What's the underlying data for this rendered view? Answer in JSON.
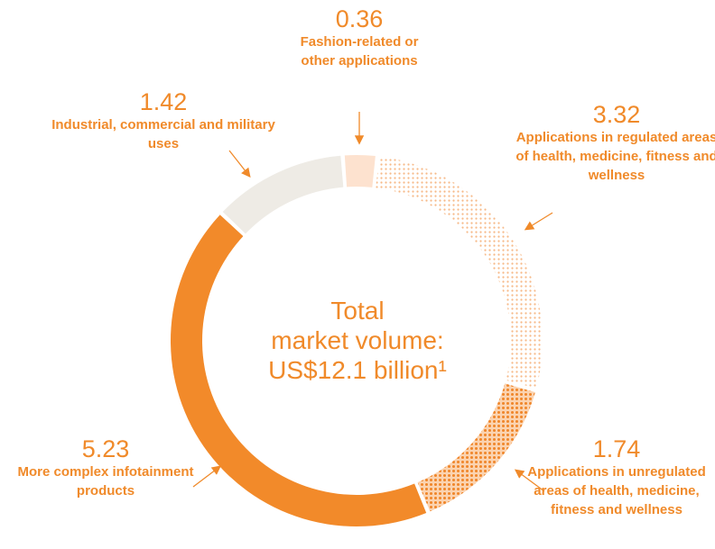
{
  "chart_data": {
    "type": "donut",
    "categories": [
      "Fashion-related or other applications",
      "Applications in regulated areas of health, medicine, fitness and wellness",
      "Applications in unregulated areas of health, medicine, fitness and wellness",
      "More complex infotainment products",
      "Industrial, commercial and military uses"
    ],
    "values": [
      0.36,
      3.32,
      1.74,
      5.23,
      1.42
    ],
    "colors": [
      "#fde2cf",
      "#f7b987",
      "#f0862a",
      "#f28a2a",
      "#eeebe5"
    ],
    "patterns": [
      null,
      "dots",
      "dots",
      null,
      null
    ],
    "center_text": [
      "Total",
      "market volume:",
      "US$12.1 billion¹"
    ]
  }
}
